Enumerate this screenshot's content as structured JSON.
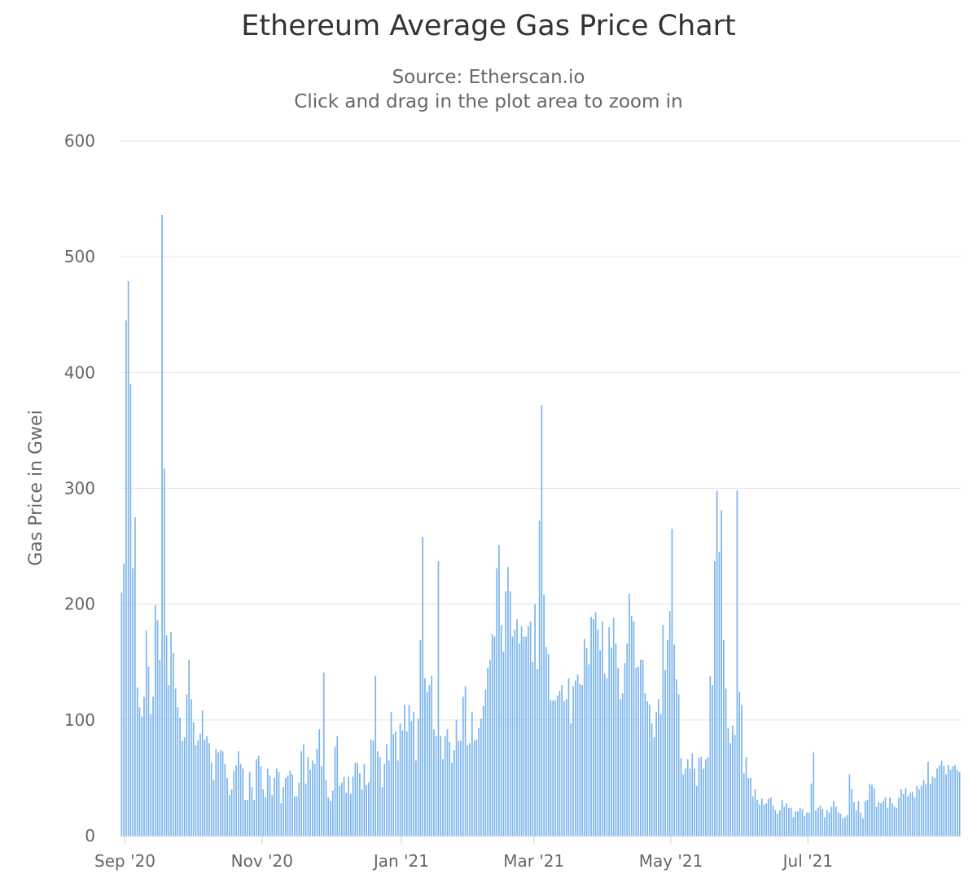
{
  "chart_data": {
    "type": "bar",
    "title": "Ethereum Average Gas Price Chart",
    "subtitle": "Source: Etherscan.io",
    "subtitle2": "Click and drag in the plot area to zoom in",
    "ylabel": "Gas Price in Gwei",
    "xlabel": "",
    "ylim": [
      0,
      600
    ],
    "yticks": [
      0,
      100,
      200,
      300,
      400,
      500,
      600
    ],
    "x_start_date": "2020-08-30",
    "x_ticks": [
      {
        "label": "Sep '20",
        "day": 2
      },
      {
        "label": "Nov '20",
        "day": 63
      },
      {
        "label": "Jan '21",
        "day": 125
      },
      {
        "label": "Mar '21",
        "day": 184
      },
      {
        "label": "May '21",
        "day": 245
      },
      {
        "label": "Jul '21",
        "day": 306
      }
    ],
    "series": [
      {
        "name": "Average Gas Price (Gwei)",
        "color": "#7cb5ec",
        "values": [
          210,
          235,
          445,
          479,
          390,
          231,
          275,
          128,
          111,
          103,
          120,
          177,
          146,
          105,
          120,
          199,
          186,
          152,
          536,
          317,
          173,
          130,
          176,
          158,
          127,
          111,
          102,
          82,
          85,
          122,
          152,
          118,
          98,
          78,
          82,
          88,
          108,
          83,
          86,
          80,
          63,
          48,
          75,
          72,
          74,
          73,
          62,
          50,
          35,
          40,
          56,
          61,
          73,
          62,
          58,
          31,
          31,
          55,
          42,
          31,
          66,
          69,
          60,
          40,
          33,
          58,
          52,
          35,
          50,
          58,
          55,
          28,
          42,
          50,
          52,
          56,
          53,
          34,
          34,
          46,
          73,
          79,
          45,
          68,
          57,
          65,
          62,
          75,
          92,
          60,
          141,
          48,
          33,
          30,
          39,
          77,
          86,
          43,
          46,
          51,
          37,
          51,
          36,
          51,
          63,
          63,
          54,
          40,
          62,
          44,
          46,
          83,
          82,
          138,
          73,
          68,
          42,
          62,
          79,
          65,
          107,
          88,
          90,
          65,
          97,
          91,
          113,
          90,
          113,
          99,
          107,
          65,
          101,
          169,
          258,
          136,
          124,
          130,
          138,
          92,
          86,
          237,
          86,
          66,
          86,
          92,
          81,
          63,
          74,
          100,
          82,
          82,
          120,
          129,
          78,
          80,
          107,
          82,
          83,
          93,
          101,
          112,
          126,
          145,
          152,
          174,
          172,
          231,
          251,
          182,
          159,
          211,
          232,
          211,
          172,
          178,
          187,
          166,
          181,
          172,
          172,
          181,
          185,
          150,
          200,
          144,
          272,
          372,
          208,
          163,
          157,
          117,
          117,
          117,
          121,
          125,
          130,
          116,
          118,
          136,
          97,
          129,
          134,
          139,
          131,
          130,
          170,
          162,
          148,
          189,
          187,
          193,
          178,
          160,
          185,
          140,
          136,
          180,
          162,
          188,
          166,
          145,
          118,
          123,
          149,
          166,
          209,
          190,
          185,
          145,
          146,
          152,
          152,
          123,
          116,
          113,
          97,
          85,
          107,
          118,
          105,
          182,
          143,
          169,
          194,
          265,
          165,
          135,
          122,
          67,
          53,
          58,
          66,
          58,
          71,
          58,
          43,
          67,
          68,
          58,
          66,
          68,
          138,
          130,
          237,
          298,
          245,
          281,
          169,
          127,
          93,
          80,
          95,
          87,
          298,
          124,
          113,
          54,
          68,
          50,
          50,
          34,
          40,
          31,
          27,
          32,
          27,
          28,
          32,
          33,
          26,
          22,
          19,
          22,
          31,
          25,
          28,
          24,
          24,
          16,
          21,
          21,
          24,
          23,
          17,
          20,
          20,
          45,
          72,
          22,
          24,
          26,
          23,
          16,
          22,
          20,
          25,
          30,
          25,
          20,
          19,
          15,
          16,
          18,
          53,
          40,
          29,
          22,
          30,
          20,
          15,
          30,
          31,
          45,
          44,
          41,
          25,
          29,
          28,
          30,
          33,
          24,
          33,
          28,
          25,
          24,
          33,
          40,
          36,
          41,
          34,
          37,
          38,
          33,
          43,
          40,
          43,
          48,
          45,
          64,
          45,
          51,
          50,
          58,
          61,
          65,
          60,
          53,
          61,
          57,
          60,
          61,
          57,
          55
        ]
      }
    ]
  }
}
